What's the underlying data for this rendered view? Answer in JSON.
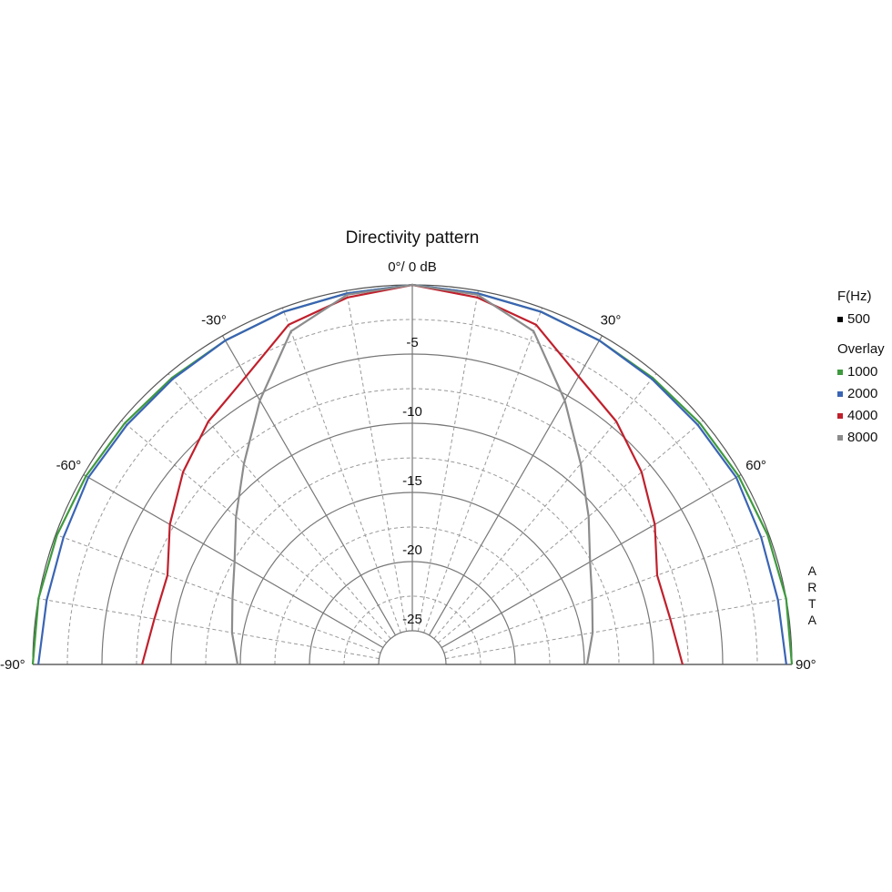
{
  "chart_data": {
    "type": "polar",
    "title": "Directivity pattern",
    "theta": [
      -90,
      -80,
      -70,
      -60,
      -50,
      -40,
      -30,
      -20,
      -10,
      0,
      10,
      20,
      30,
      40,
      50,
      60,
      70,
      80,
      90
    ],
    "thetaticks": [
      {
        "value": -90,
        "label": "-90°"
      },
      {
        "value": -60,
        "label": "-60°"
      },
      {
        "value": -30,
        "label": "-30°"
      },
      {
        "value": 0,
        "label": "0°/ 0 dB"
      },
      {
        "value": 30,
        "label": "30°"
      },
      {
        "value": 60,
        "label": "60°"
      },
      {
        "value": 90,
        "label": "90°"
      }
    ],
    "rlim": [
      -25,
      0
    ],
    "rticks": [
      -5,
      -10,
      -15,
      -20,
      -25
    ],
    "legend_title": "F(Hz)",
    "reference": {
      "name": "500",
      "color": "#000000"
    },
    "overlay_title": "Overlay",
    "series": [
      {
        "name": "1000",
        "color": "#3f9a3f",
        "values": [
          0,
          0,
          -0.1,
          -0.2,
          -0.3,
          -0.4,
          -0.4,
          -0.3,
          -0.2,
          0,
          -0.2,
          -0.3,
          -0.4,
          -0.4,
          -0.3,
          -0.2,
          -0.1,
          0,
          0
        ]
      },
      {
        "name": "2000",
        "color": "#3a64b4",
        "values": [
          -0.4,
          -0.6,
          -0.6,
          -0.4,
          -0.5,
          -0.5,
          -0.4,
          -0.3,
          -0.2,
          0,
          -0.2,
          -0.3,
          -0.4,
          -0.5,
          -0.5,
          -0.4,
          -0.6,
          -0.6,
          -0.4
        ]
      },
      {
        "name": "4000",
        "color": "#c0202c",
        "values": [
          -7.9,
          -8.5,
          -8.6,
          -7.2,
          -5.8,
          -4.5,
          -3.4,
          -1.3,
          -0.5,
          0,
          -0.5,
          -1.3,
          -3.4,
          -4.5,
          -5.8,
          -7.2,
          -8.6,
          -8.5,
          -7.9
        ]
      },
      {
        "name": "8000",
        "color": "#8c8c8c",
        "values": [
          -14.8,
          -14.2,
          -13.6,
          -12.6,
          -10.8,
          -8.5,
          -5.4,
          -1.8,
          -0.3,
          0,
          -0.3,
          -1.8,
          -5.4,
          -8.5,
          -10.8,
          -12.6,
          -13.6,
          -14.2,
          -14.8
        ]
      }
    ],
    "watermark": "ARTA"
  }
}
